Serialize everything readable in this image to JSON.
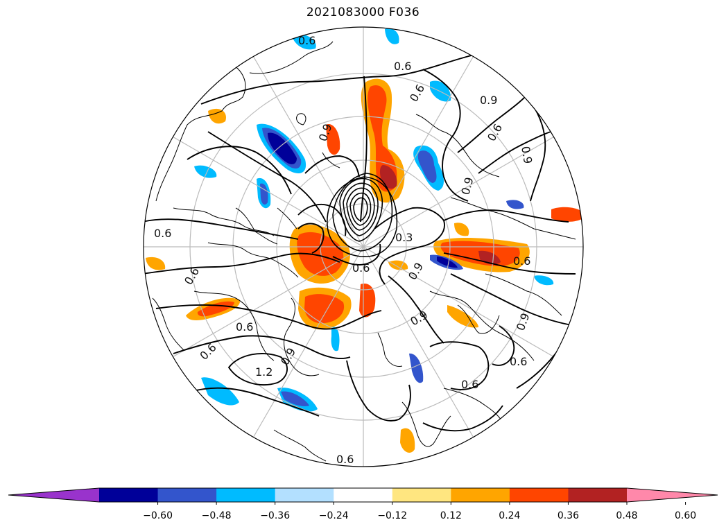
{
  "title": "2021083000 F036",
  "colorbar": {
    "colors": [
      "#9933cc",
      "#000099",
      "#3355cc",
      "#00bbff",
      "#b3e0ff",
      "#ffffff",
      "#ffe680",
      "#ffa500",
      "#ff4500",
      "#b22222",
      "#ff88aa"
    ],
    "ticks": [
      "−0.60",
      "−0.48",
      "−0.36",
      "−0.24",
      "−0.12",
      "0.12",
      "0.24",
      "0.36",
      "0.48",
      "0.60"
    ]
  },
  "contour_labels": [
    "0.6",
    "0.6",
    "0.9",
    "0.6",
    "0.6",
    "0.9",
    "0.9",
    "0.3",
    "0.6",
    "0.9",
    "0.9",
    "0.9",
    "0.6",
    "0.6",
    "0.9",
    "1.2",
    "0.6",
    "0.6",
    "0.6",
    "0.6",
    "0.6",
    "0.9",
    "0.6"
  ],
  "shading_colors": {
    "orange": "#ffa500",
    "red_orange": "#ff4500",
    "dark_red": "#b22222",
    "yellow": "#ffe680",
    "cyan": "#00bbff",
    "light_blue": "#b3e0ff",
    "medium_blue": "#3355cc",
    "navy": "#000099"
  }
}
